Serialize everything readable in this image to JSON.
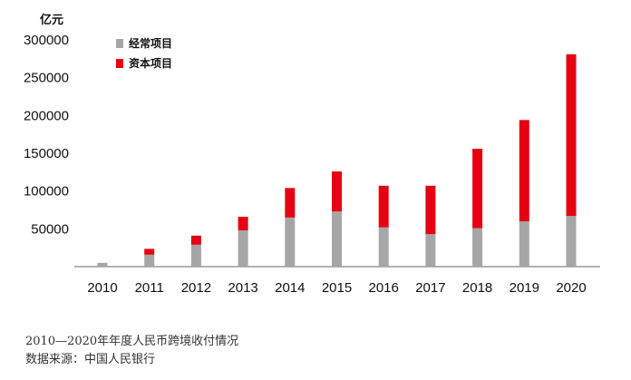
{
  "chart_data": {
    "type": "bar",
    "stacked": true,
    "unit_label": "亿元",
    "categories": [
      "2010",
      "2011",
      "2012",
      "2013",
      "2014",
      "2015",
      "2016",
      "2017",
      "2018",
      "2019",
      "2020"
    ],
    "series": [
      {
        "name": "经常项目",
        "color": "#a6a6a6",
        "values": [
          5000,
          15800,
          29000,
          48000,
          65000,
          73000,
          52000,
          43000,
          51000,
          60000,
          67000
        ]
      },
      {
        "name": "资本项目",
        "color": "#e60012",
        "values": [
          0,
          7700,
          12000,
          18000,
          39000,
          53000,
          55000,
          64000,
          105000,
          134000,
          214000
        ]
      }
    ],
    "yticks": [
      50000,
      100000,
      150000,
      200000,
      250000,
      300000
    ],
    "ylim": [
      0,
      300000
    ],
    "legend_position": "top-left",
    "grid": false
  },
  "captions": {
    "title": "2010—2020年年度人民币跨境收付情况",
    "source": "数据来源：中国人民银行"
  }
}
